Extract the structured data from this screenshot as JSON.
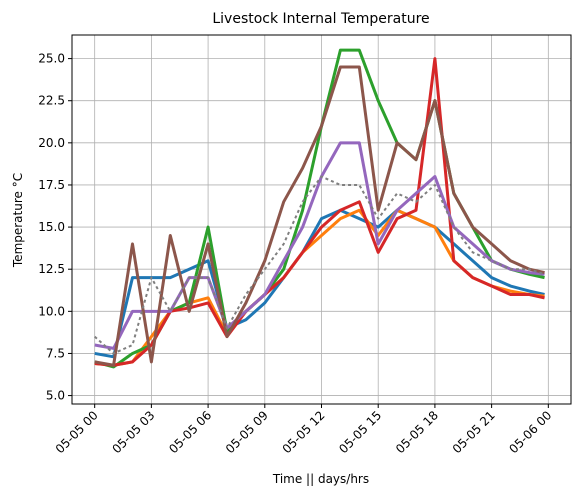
{
  "chart_data": {
    "type": "line",
    "title": "Livestock Internal Temperature",
    "xlabel": "Time || days/hrs",
    "ylabel": "Temperature °C",
    "x": [
      0,
      1,
      2,
      3,
      4,
      5,
      6,
      7,
      8,
      9,
      10,
      11,
      12,
      13,
      14,
      15,
      16,
      17,
      18,
      19,
      20,
      21,
      22,
      23,
      23.8
    ],
    "xlim": [
      -1.2,
      25.2
    ],
    "xticks": [
      {
        "value": 0,
        "label": "05-05 00"
      },
      {
        "value": 3,
        "label": "05-05 03"
      },
      {
        "value": 6,
        "label": "05-05 06"
      },
      {
        "value": 9,
        "label": "05-05 09"
      },
      {
        "value": 12,
        "label": "05-05 12"
      },
      {
        "value": 15,
        "label": "05-05 15"
      },
      {
        "value": 18,
        "label": "05-05 18"
      },
      {
        "value": 21,
        "label": "05-05 21"
      },
      {
        "value": 24,
        "label": "05-06 00"
      }
    ],
    "ylim": [
      4.5,
      26.4
    ],
    "yticks": [
      {
        "value": 5,
        "label": "5.0"
      },
      7.5,
      {
        "value": 10,
        "label": "10.0"
      },
      12.5,
      {
        "value": 15,
        "label": "15.0"
      },
      17.5,
      {
        "value": 20,
        "label": "20.0"
      },
      22.5,
      {
        "value": 25,
        "label": "25.0"
      }
    ],
    "grid": true,
    "series": [
      {
        "color": "#1f77b4",
        "values": [
          7.5,
          7.3,
          12,
          12,
          12,
          12.5,
          13,
          9,
          9.5,
          10.5,
          12,
          13.5,
          15.5,
          16,
          15.5,
          15,
          16,
          15.5,
          15,
          14,
          13,
          12,
          11.5,
          11.2,
          11.0
        ]
      },
      {
        "color": "#ff7f0e",
        "values": [
          6.9,
          6.8,
          7,
          8.5,
          10,
          10.5,
          10.8,
          8.6,
          10,
          11,
          12,
          13.5,
          14.5,
          15.5,
          16,
          14.5,
          16,
          15.5,
          15,
          13,
          12,
          11.5,
          11.2,
          11,
          10.9
        ]
      },
      {
        "color": "#2ca02c",
        "values": [
          7,
          6.7,
          7.5,
          8,
          10,
          10.5,
          15,
          8.8,
          10,
          11,
          12.5,
          16,
          21,
          25.5,
          25.5,
          22.5,
          20,
          19,
          22.5,
          17,
          15,
          13,
          12.5,
          12.2,
          12
        ]
      },
      {
        "color": "#d62728",
        "values": [
          6.9,
          6.8,
          7,
          8,
          10,
          10.2,
          10.5,
          8.5,
          10,
          11,
          12,
          13.5,
          15,
          16,
          16.5,
          13.5,
          15.5,
          16,
          25,
          13,
          12,
          11.5,
          11,
          11,
          10.8
        ]
      },
      {
        "color": "#9467bd",
        "values": [
          8,
          7.8,
          10,
          10,
          10,
          12,
          12,
          9,
          10,
          11,
          13,
          15,
          18,
          20,
          20,
          14,
          16,
          17,
          18,
          15,
          14,
          13,
          12.5,
          12.3,
          12.2
        ]
      },
      {
        "color": "#8c564b",
        "values": [
          7,
          6.8,
          14,
          7,
          14.5,
          10,
          14,
          8.5,
          10.5,
          13,
          16.5,
          18.5,
          21,
          24.5,
          24.5,
          16,
          20,
          19,
          22.5,
          17,
          15,
          14,
          13,
          12.5,
          12.3
        ]
      },
      {
        "color": "#7f7f7f",
        "values": [
          8.5,
          7.5,
          8,
          12,
          10,
          12,
          12,
          9,
          11,
          12.5,
          14,
          16.5,
          18,
          17.5,
          17.5,
          15.5,
          17,
          16.5,
          17.5,
          15,
          13.5,
          13,
          12.5,
          12.5,
          12.2
        ]
      }
    ]
  }
}
